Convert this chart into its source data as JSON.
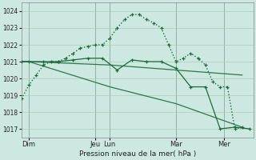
{
  "background_color": "#cce8e0",
  "grid_color": "#aaccbb",
  "line_color_dark": "#1a6b3a",
  "line_color_medium": "#2a7a46",
  "xlabel": "Pression niveau de la mer( hPa )",
  "ylim": [
    1016.5,
    1024.5
  ],
  "yticks": [
    1017,
    1018,
    1019,
    1020,
    1021,
    1022,
    1023,
    1024
  ],
  "xlim": [
    0,
    252
  ],
  "day_labels": [
    "Dim",
    "Jeu",
    "Lun",
    "Mar",
    "Mer"
  ],
  "day_positions": [
    8,
    80,
    96,
    168,
    220
  ],
  "vline_positions": [
    8,
    80,
    96,
    168,
    220
  ],
  "s1_x": [
    0,
    8,
    16,
    24,
    32,
    40,
    48,
    56,
    64,
    72,
    80,
    88,
    96,
    104,
    112,
    120,
    128,
    136,
    144,
    152,
    160,
    168,
    176,
    184,
    192,
    200,
    208,
    216,
    224,
    232,
    240
  ],
  "s1_y": [
    1018.8,
    1019.6,
    1020.2,
    1020.8,
    1021.0,
    1021.0,
    1021.2,
    1021.5,
    1021.8,
    1021.9,
    1022.0,
    1022.0,
    1022.4,
    1023.0,
    1023.5,
    1023.8,
    1023.8,
    1023.5,
    1023.3,
    1023.0,
    1022.0,
    1021.0,
    1021.2,
    1021.5,
    1021.2,
    1020.8,
    1019.8,
    1019.5,
    1019.5,
    1017.0,
    1017.1
  ],
  "s2_x": [
    0,
    8,
    96,
    168,
    240
  ],
  "s2_y": [
    1021.0,
    1021.0,
    1020.8,
    1020.5,
    1020.2
  ],
  "s3_x": [
    0,
    8,
    96,
    168,
    240
  ],
  "s3_y": [
    1021.0,
    1021.0,
    1019.5,
    1018.5,
    1017.1
  ],
  "s4_x": [
    0,
    8,
    24,
    40,
    56,
    72,
    88,
    104,
    120,
    136,
    152,
    168,
    184,
    200,
    216,
    232,
    248
  ],
  "s4_y": [
    1021.0,
    1021.0,
    1021.0,
    1021.0,
    1021.1,
    1021.2,
    1021.2,
    1020.5,
    1021.1,
    1021.0,
    1021.0,
    1020.6,
    1019.5,
    1019.5,
    1017.0,
    1017.1,
    1017.0
  ]
}
